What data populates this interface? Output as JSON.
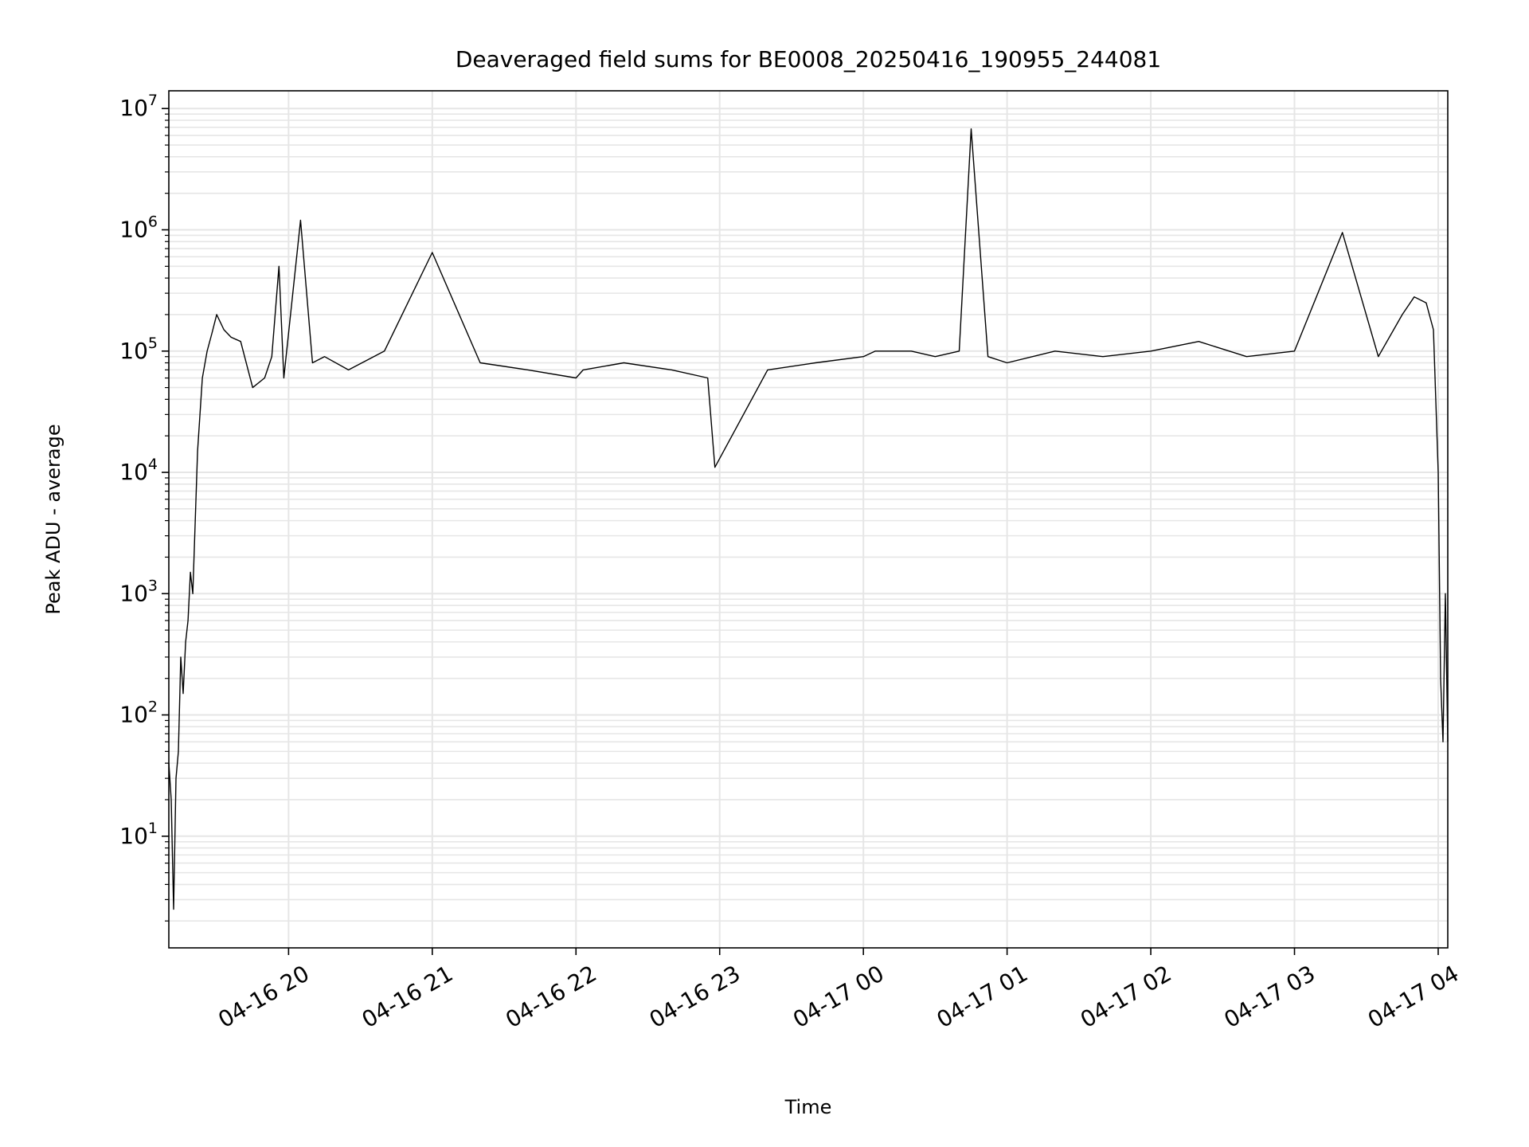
{
  "chart_data": {
    "type": "line",
    "title": "Deaveraged field sums for BE0008_20250416_190955_244081",
    "xlabel": "Time",
    "ylabel": "Peak ADU - average",
    "yscale": "log",
    "grid": true,
    "line_color": "#000000",
    "grid_color": "#e6e6e6",
    "xlim": [
      "2025-04-16 19:10",
      "2025-04-17 04:04"
    ],
    "ylim": [
      1.2,
      14000000
    ],
    "x_ticks": [
      "2025-04-16 20:00",
      "2025-04-16 21:00",
      "2025-04-16 22:00",
      "2025-04-16 23:00",
      "2025-04-17 00:00",
      "2025-04-17 01:00",
      "2025-04-17 02:00",
      "2025-04-17 03:00",
      "2025-04-17 04:00"
    ],
    "x_tick_labels": [
      "04-16 20",
      "04-16 21",
      "04-16 22",
      "04-16 23",
      "04-17 00",
      "04-17 01",
      "04-17 02",
      "04-17 03",
      "04-17 04"
    ],
    "y_ticks": [
      10,
      100,
      1000,
      10000,
      100000,
      1000000,
      10000000
    ],
    "y_tick_labels": [
      {
        "base": "10",
        "exp": "1"
      },
      {
        "base": "10",
        "exp": "2"
      },
      {
        "base": "10",
        "exp": "3"
      },
      {
        "base": "10",
        "exp": "4"
      },
      {
        "base": "10",
        "exp": "5"
      },
      {
        "base": "10",
        "exp": "6"
      },
      {
        "base": "10",
        "exp": "7"
      }
    ],
    "series": [
      {
        "x": [
          "2025-04-16 19:10",
          "2025-04-16 19:11",
          "2025-04-16 19:12",
          "2025-04-16 19:13",
          "2025-04-16 19:14",
          "2025-04-16 19:15",
          "2025-04-16 19:16",
          "2025-04-16 19:17",
          "2025-04-16 19:18",
          "2025-04-16 19:19",
          "2025-04-16 19:20",
          "2025-04-16 19:22",
          "2025-04-16 19:24",
          "2025-04-16 19:26",
          "2025-04-16 19:28",
          "2025-04-16 19:30",
          "2025-04-16 19:33",
          "2025-04-16 19:36",
          "2025-04-16 19:40",
          "2025-04-16 19:45",
          "2025-04-16 19:50",
          "2025-04-16 19:53",
          "2025-04-16 19:56",
          "2025-04-16 19:58",
          "2025-04-16 20:05",
          "2025-04-16 20:10",
          "2025-04-16 20:15",
          "2025-04-16 20:25",
          "2025-04-16 20:40",
          "2025-04-16 21:00",
          "2025-04-16 21:20",
          "2025-04-16 21:40",
          "2025-04-16 22:00",
          "2025-04-16 22:03",
          "2025-04-16 22:20",
          "2025-04-16 22:40",
          "2025-04-16 22:55",
          "2025-04-16 22:58",
          "2025-04-16 23:20",
          "2025-04-16 23:40",
          "2025-04-17 00:00",
          "2025-04-17 00:05",
          "2025-04-17 00:20",
          "2025-04-17 00:30",
          "2025-04-17 00:40",
          "2025-04-17 00:45",
          "2025-04-17 00:52",
          "2025-04-17 01:00",
          "2025-04-17 01:20",
          "2025-04-17 01:40",
          "2025-04-17 02:00",
          "2025-04-17 02:20",
          "2025-04-17 02:40",
          "2025-04-17 03:00",
          "2025-04-17 03:20",
          "2025-04-17 03:35",
          "2025-04-17 03:45",
          "2025-04-17 03:50",
          "2025-04-17 03:55",
          "2025-04-17 03:58",
          "2025-04-17 04:00",
          "2025-04-17 04:01",
          "2025-04-17 04:02",
          "2025-04-17 04:03",
          "2025-04-17 04:04"
        ],
        "y": [
          40,
          20,
          2.5,
          30,
          50,
          300,
          150,
          400,
          600,
          1500,
          1000,
          15000,
          60000,
          100000,
          140000,
          200000,
          150000,
          130000,
          120000,
          50000,
          60000,
          90000,
          500000,
          60000,
          1200000,
          80000,
          90000,
          70000,
          100000,
          650000,
          80000,
          70000,
          60000,
          70000,
          80000,
          70000,
          60000,
          11000,
          70000,
          80000,
          90000,
          100000,
          100000,
          90000,
          100000,
          6800000,
          90000,
          80000,
          100000,
          90000,
          100000,
          120000,
          90000,
          100000,
          950000,
          90000,
          200000,
          280000,
          250000,
          150000,
          10000,
          200,
          60,
          1000,
          60
        ]
      }
    ]
  }
}
